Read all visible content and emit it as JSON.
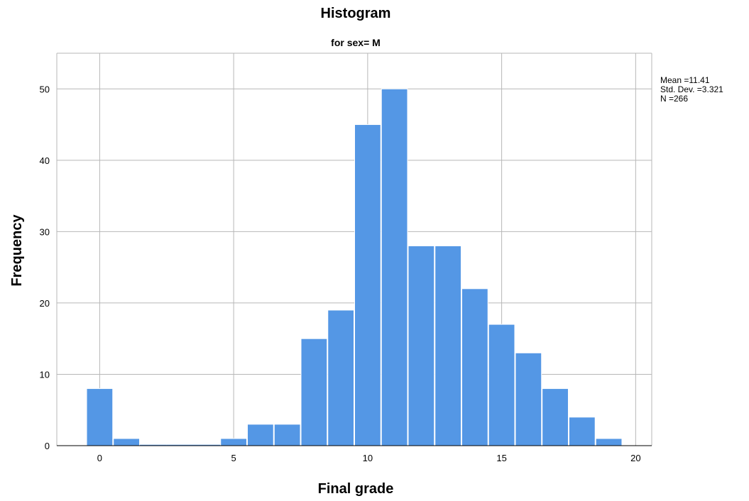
{
  "chart_data": {
    "type": "bar",
    "title": "Histogram",
    "subtitle": "for sex= M",
    "xlabel": "Final grade",
    "ylabel": "Frequency",
    "bins": [
      {
        "x": 0,
        "value": 8
      },
      {
        "x": 1,
        "value": 1
      },
      {
        "x": 2,
        "value": 0
      },
      {
        "x": 3,
        "value": 0
      },
      {
        "x": 4,
        "value": 0
      },
      {
        "x": 5,
        "value": 1
      },
      {
        "x": 6,
        "value": 3
      },
      {
        "x": 7,
        "value": 3
      },
      {
        "x": 8,
        "value": 15
      },
      {
        "x": 9,
        "value": 19
      },
      {
        "x": 10,
        "value": 45
      },
      {
        "x": 11,
        "value": 50
      },
      {
        "x": 12,
        "value": 28
      },
      {
        "x": 13,
        "value": 28
      },
      {
        "x": 14,
        "value": 22
      },
      {
        "x": 15,
        "value": 17
      },
      {
        "x": 16,
        "value": 13
      },
      {
        "x": 17,
        "value": 8
      },
      {
        "x": 18,
        "value": 4
      },
      {
        "x": 19,
        "value": 1
      }
    ],
    "x_ticks": [
      0,
      5,
      10,
      15,
      20
    ],
    "y_ticks": [
      0,
      10,
      20,
      30,
      40,
      50
    ],
    "xlim": [
      -1.6,
      20.6
    ],
    "ylim": [
      0,
      55
    ],
    "grid": true,
    "bar_color": "#5497e5",
    "stats": {
      "mean": "Mean =11.41",
      "std_dev": "Std. Dev. =3.321",
      "n": "N =266"
    }
  }
}
